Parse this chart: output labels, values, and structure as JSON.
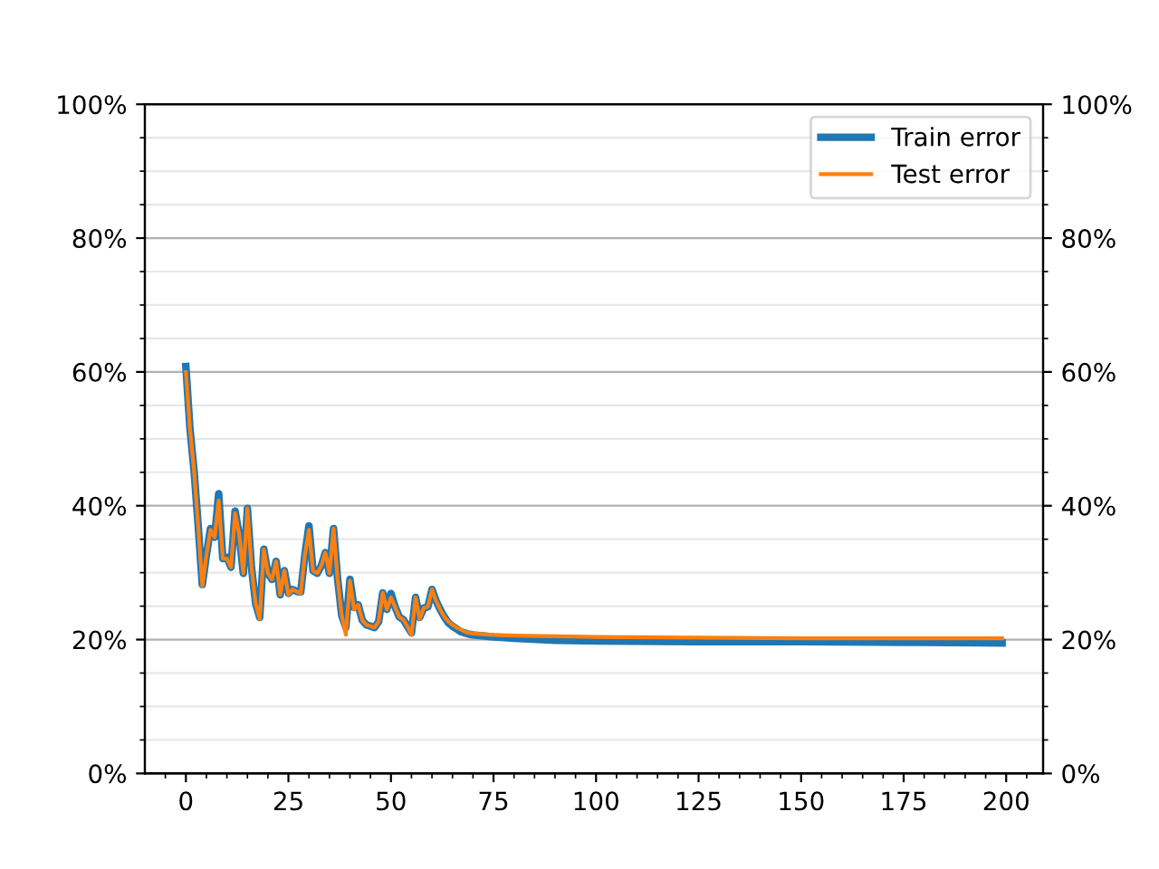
{
  "chart_data": {
    "type": "line",
    "x": [
      0,
      1,
      2,
      3,
      4,
      5,
      6,
      7,
      8,
      9,
      10,
      11,
      12,
      13,
      14,
      15,
      16,
      17,
      18,
      19,
      20,
      21,
      22,
      23,
      24,
      25,
      26,
      27,
      28,
      29,
      30,
      31,
      32,
      33,
      34,
      35,
      36,
      37,
      38,
      39,
      40,
      41,
      42,
      43,
      44,
      45,
      46,
      47,
      48,
      49,
      50,
      51,
      52,
      53,
      54,
      55,
      56,
      57,
      58,
      59,
      60,
      61,
      62,
      63,
      64,
      65,
      66,
      67,
      68,
      69,
      70,
      75,
      80,
      90,
      100,
      125,
      150,
      175,
      199
    ],
    "series": [
      {
        "name": "Train error",
        "color": "#1f77b4",
        "values": [
          60.8,
          51.5,
          45.2,
          37,
          28.2,
          32.6,
          36.6,
          35.3,
          41.8,
          32.1,
          32.3,
          30.8,
          39.2,
          35.7,
          29.9,
          39.6,
          30.8,
          25.4,
          23.3,
          33.5,
          29.9,
          29,
          31.7,
          26.7,
          30.3,
          26.9,
          27.5,
          27.2,
          27.1,
          32.6,
          37,
          30.3,
          29.9,
          31,
          33,
          29.9,
          36.6,
          29,
          23.6,
          21.8,
          29,
          24.8,
          25.2,
          22.9,
          22.2,
          22,
          21.8,
          22.7,
          27,
          24.5,
          26.9,
          24.9,
          23.4,
          23,
          22,
          21,
          26.3,
          23.3,
          24.7,
          24.9,
          27.5,
          25.8,
          24.5,
          23.4,
          22.5,
          22,
          21.6,
          21.2,
          21,
          20.8,
          20.7,
          20.4,
          20.2,
          19.9,
          19.8,
          19.7,
          19.7,
          19.6,
          19.5
        ]
      },
      {
        "name": "Test error",
        "color": "#ff7f0e",
        "values": [
          60,
          51.5,
          45.2,
          37,
          28,
          32.6,
          36.4,
          35.3,
          40.8,
          32.1,
          32.1,
          30.8,
          38.9,
          35.7,
          29.9,
          39.6,
          30.8,
          25.4,
          23.1,
          33.5,
          29.9,
          29,
          31.7,
          26.7,
          30.3,
          26.7,
          27.5,
          27.2,
          26.9,
          32.6,
          36.4,
          30.3,
          29.9,
          31,
          33,
          29.9,
          36.6,
          29,
          23.6,
          20.7,
          28.8,
          24.5,
          25.2,
          22.9,
          22.2,
          22,
          21.8,
          22.7,
          27,
          24.5,
          26.3,
          24.9,
          23.4,
          23,
          22,
          20.7,
          26.3,
          23.1,
          24.7,
          24.9,
          27.5,
          25.8,
          24.5,
          23.4,
          22.7,
          22.2,
          21.8,
          21.5,
          21.2,
          21,
          20.9,
          20.7,
          20.6,
          20.5,
          20.4,
          20.3,
          20.2,
          20.2,
          20.2
        ]
      }
    ],
    "xlim": [
      -10,
      209
    ],
    "xticks": [
      0,
      25,
      50,
      75,
      100,
      125,
      150,
      175,
      200,
      {
        "value": -5,
        "label": null
      },
      {
        "value": 5,
        "label": null
      },
      {
        "value": 10,
        "label": null
      },
      {
        "value": 15,
        "label": null
      },
      {
        "value": 20,
        "label": null
      },
      {
        "value": 30,
        "label": null
      },
      {
        "value": 35,
        "label": null
      },
      {
        "value": 40,
        "label": null
      },
      {
        "value": 45,
        "label": null
      },
      {
        "value": 55,
        "label": null
      },
      {
        "value": 60,
        "label": null
      },
      {
        "value": 65,
        "label": null
      },
      {
        "value": 70,
        "label": null
      },
      {
        "value": 80,
        "label": null
      },
      {
        "value": 85,
        "label": null
      },
      {
        "value": 90,
        "label": null
      },
      {
        "value": 95,
        "label": null
      },
      {
        "value": 105,
        "label": null
      },
      {
        "value": 110,
        "label": null
      },
      {
        "value": 115,
        "label": null
      },
      {
        "value": 120,
        "label": null
      },
      {
        "value": 130,
        "label": null
      },
      {
        "value": 135,
        "label": null
      },
      {
        "value": 140,
        "label": null
      },
      {
        "value": 145,
        "label": null
      },
      {
        "value": 155,
        "label": null
      },
      {
        "value": 160,
        "label": null
      },
      {
        "value": 165,
        "label": null
      },
      {
        "value": 170,
        "label": null
      },
      {
        "value": 180,
        "label": null
      },
      {
        "value": 185,
        "label": null
      },
      {
        "value": 190,
        "label": null
      },
      {
        "value": 195,
        "label": null
      },
      {
        "value": 205,
        "label": null
      }
    ],
    "ylim": [
      0,
      100
    ],
    "yticks": [
      {
        "value": 0,
        "label": "0%"
      },
      {
        "value": 20,
        "label": "20%"
      },
      {
        "value": 40,
        "label": "40%"
      },
      {
        "value": 60,
        "label": "60%"
      },
      {
        "value": 80,
        "label": "80%"
      },
      {
        "value": 100,
        "label": "100%"
      },
      {
        "value": 5,
        "label": null
      },
      {
        "value": 10,
        "label": null
      },
      {
        "value": 15,
        "label": null
      },
      {
        "value": 25,
        "label": null
      },
      {
        "value": 30,
        "label": null
      },
      {
        "value": 35,
        "label": null
      },
      {
        "value": 45,
        "label": null
      },
      {
        "value": 50,
        "label": null
      },
      {
        "value": 55,
        "label": null
      },
      {
        "value": 65,
        "label": null
      },
      {
        "value": 70,
        "label": null
      },
      {
        "value": 75,
        "label": null
      },
      {
        "value": 85,
        "label": null
      },
      {
        "value": 90,
        "label": null
      },
      {
        "value": 95,
        "label": null
      }
    ],
    "y2lim": [
      0,
      100
    ],
    "y2ticks": [
      {
        "value": 0,
        "label": "0%"
      },
      {
        "value": 20,
        "label": "20%"
      },
      {
        "value": 40,
        "label": "40%"
      },
      {
        "value": 60,
        "label": "60%"
      },
      {
        "value": 80,
        "label": "80%"
      },
      {
        "value": 100,
        "label": "100%"
      },
      {
        "value": 5,
        "label": null
      },
      {
        "value": 10,
        "label": null
      },
      {
        "value": 15,
        "label": null
      },
      {
        "value": 25,
        "label": null
      },
      {
        "value": 30,
        "label": null
      },
      {
        "value": 35,
        "label": null
      },
      {
        "value": 45,
        "label": null
      },
      {
        "value": 50,
        "label": null
      },
      {
        "value": 55,
        "label": null
      },
      {
        "value": 65,
        "label": null
      },
      {
        "value": 70,
        "label": null
      },
      {
        "value": 75,
        "label": null
      },
      {
        "value": 85,
        "label": null
      },
      {
        "value": 90,
        "label": null
      },
      {
        "value": 95,
        "label": null
      }
    ],
    "grid": "y",
    "legend": "top right",
    "marker": "none",
    "line_style": "solid"
  }
}
